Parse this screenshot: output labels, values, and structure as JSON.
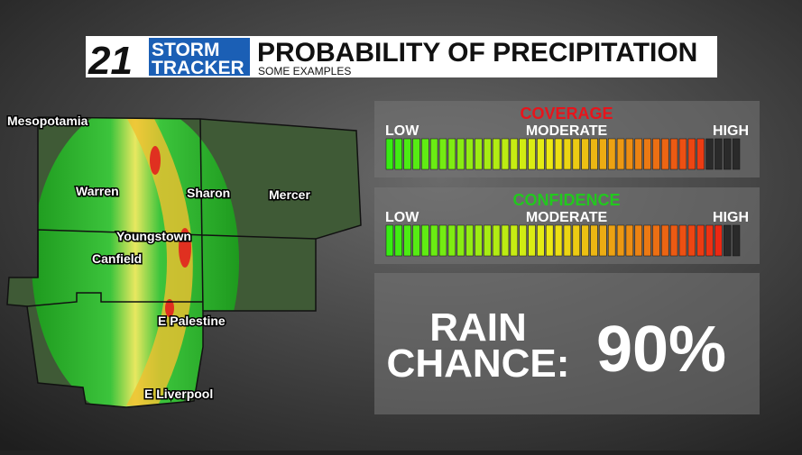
{
  "header": {
    "logo_number": "21",
    "logo_line1": "STORM",
    "logo_line2": "TRACKER",
    "title": "PROBABILITY OF PRECIPITATION",
    "subtitle": "SOME EXAMPLES"
  },
  "map": {
    "labels": [
      "Mesopotamia",
      "Warren",
      "Sharon",
      "Mercer",
      "Youngstown",
      "Canfield",
      "E Palestine",
      "E Liverpool"
    ]
  },
  "gauges": [
    {
      "title": "COVERAGE",
      "title_color": "#e8141b",
      "low": "LOW",
      "moderate": "MODERATE",
      "high": "HIGH",
      "level": 36,
      "segments": 40
    },
    {
      "title": "CONFIDENCE",
      "title_color": "#22c81e",
      "low": "LOW",
      "moderate": "MODERATE",
      "high": "HIGH",
      "level": 38,
      "segments": 40
    }
  ],
  "rain_chance": {
    "label_line1": "RAIN",
    "label_line2": "CHANCE:",
    "value": "90%"
  }
}
